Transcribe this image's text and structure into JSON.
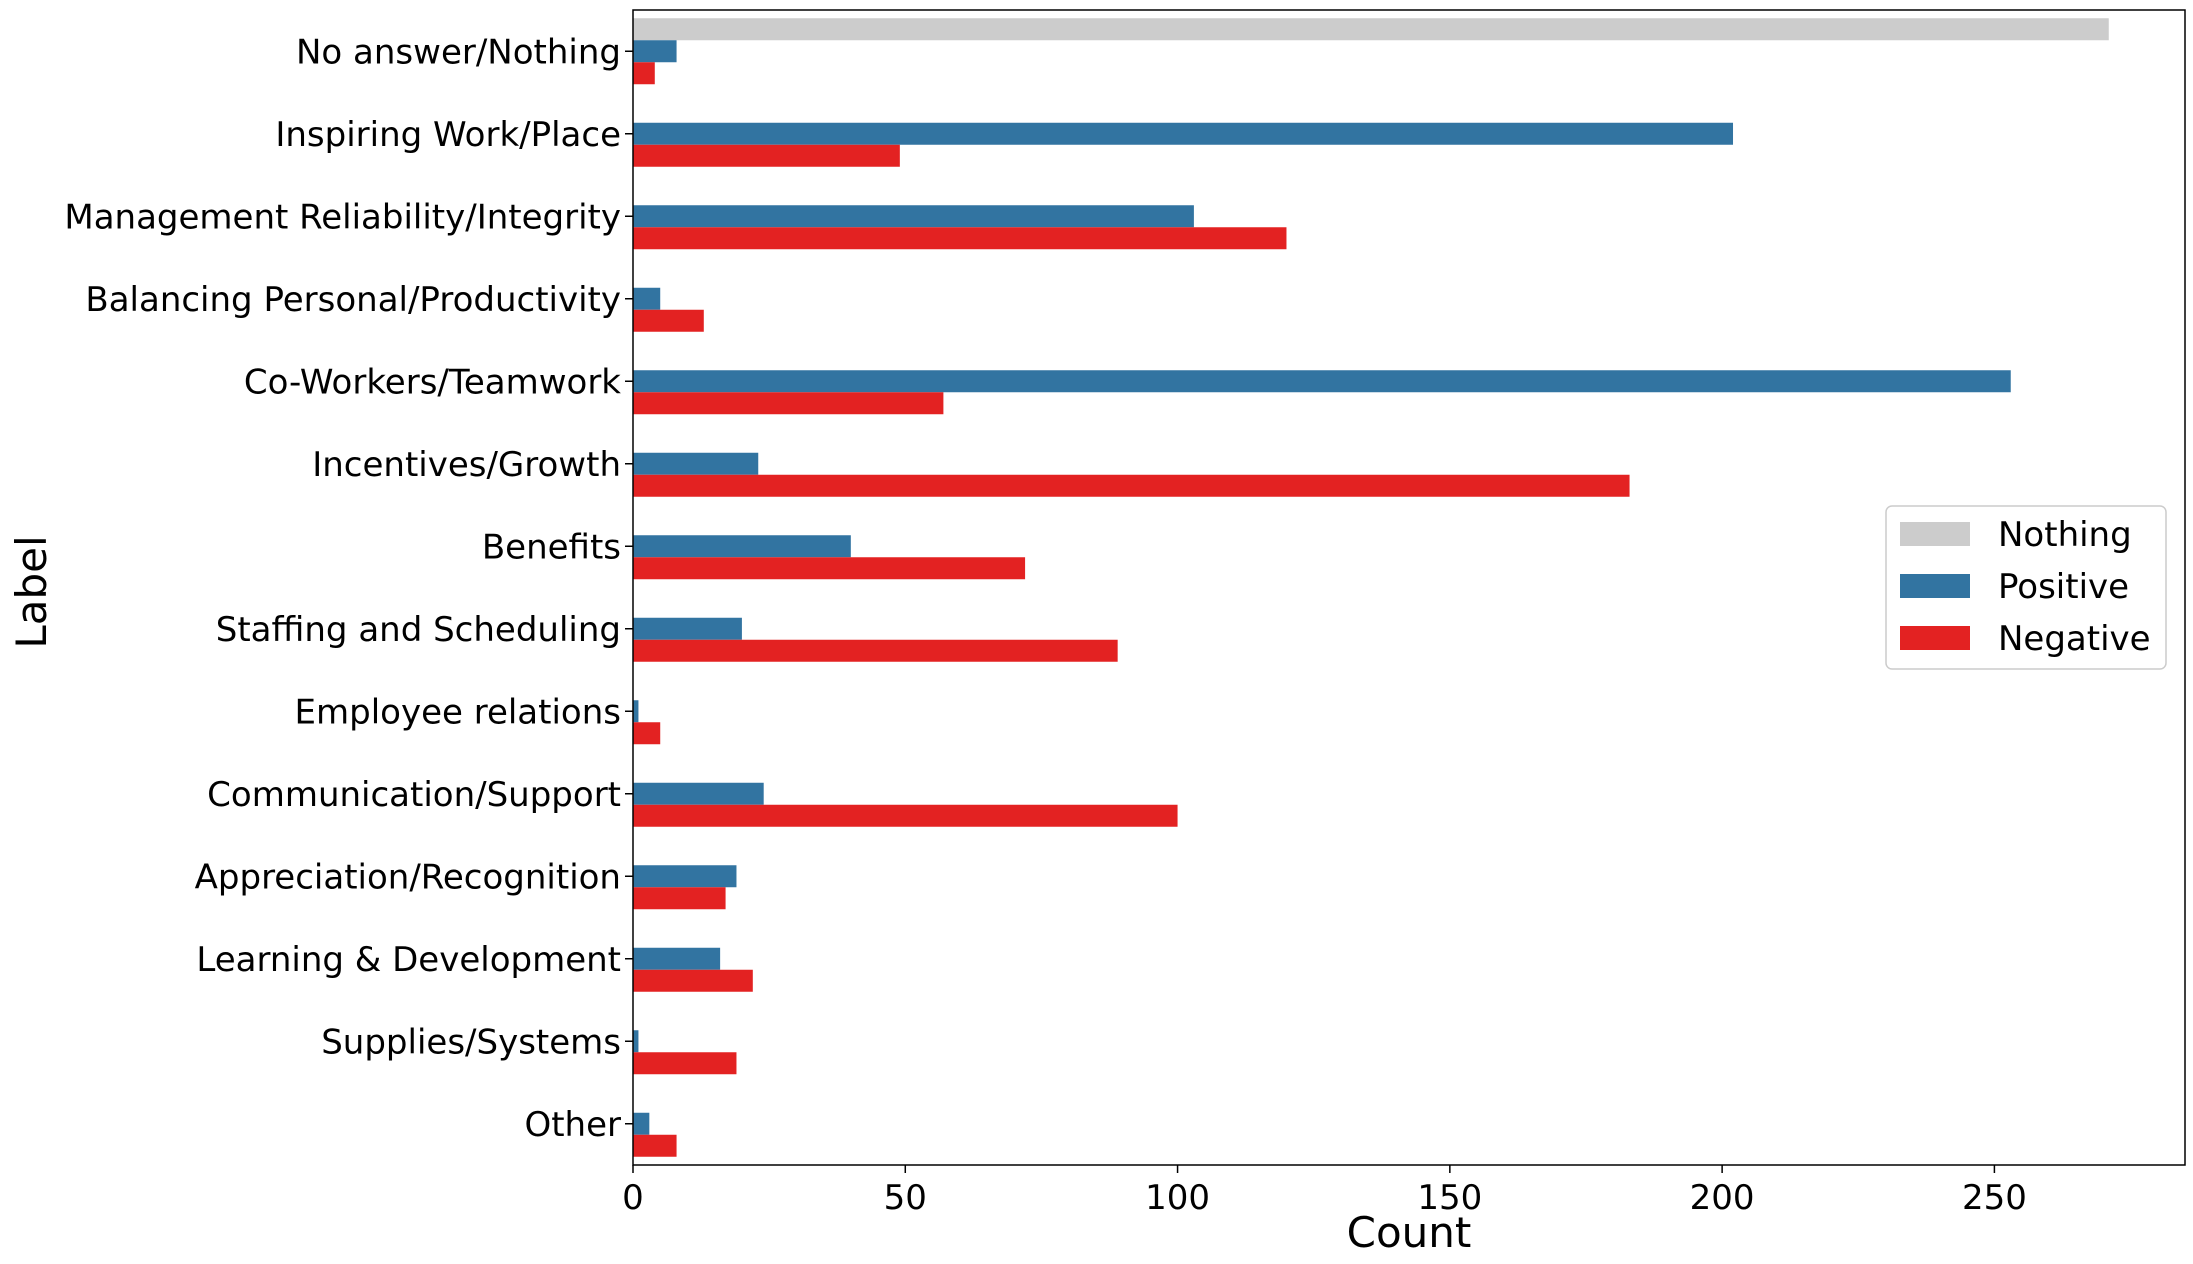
{
  "chart_data": {
    "type": "bar",
    "orientation": "horizontal",
    "categories": [
      "No answer/Nothing",
      "Inspiring Work/Place",
      "Management Reliability/Integrity",
      "Balancing Personal/Productivity",
      "Co-Workers/Teamwork",
      "Incentives/Growth",
      "Benefits",
      "Staffing and Scheduling",
      "Employee relations",
      "Communication/Support",
      "Appreciation/Recognition",
      "Learning & Development",
      "Supplies/Systems",
      "Other"
    ],
    "series": [
      {
        "name": "Nothing",
        "color": "#cccccc",
        "values": [
          271,
          0,
          0,
          0,
          0,
          0,
          0,
          0,
          0,
          0,
          0,
          0,
          0,
          0
        ]
      },
      {
        "name": "Positive",
        "color": "#3274a1",
        "values": [
          8,
          202,
          103,
          5,
          253,
          23,
          40,
          20,
          1,
          24,
          19,
          16,
          1,
          3
        ]
      },
      {
        "name": "Negative",
        "color": "#e32222",
        "values": [
          4,
          49,
          120,
          13,
          57,
          183,
          72,
          89,
          5,
          100,
          17,
          22,
          19,
          8
        ]
      }
    ],
    "xlabel": "Count",
    "ylabel": "Label",
    "xlim": [
      0,
      285
    ],
    "xticks": [
      0,
      50,
      100,
      150,
      200,
      250
    ],
    "grid": false,
    "legend_position": "center-right"
  }
}
